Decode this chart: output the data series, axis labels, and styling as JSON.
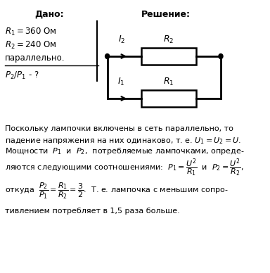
{
  "title_given": "Дано:",
  "title_solution": "Решение:",
  "given_lines": [
    "$R_1 = 360$ Ом",
    "$R_2 = 240$ Ом",
    "параллельно.",
    "$P_2/P_1$ - ?"
  ],
  "solution_text_lines": [
    "Поскольку лампочки включены в сеть параллельно, то",
    "падение напряжения на них одинаково, т. е. $U_1=U_2=U$.",
    "Мощности  $P_1$  и  $P_2$,  потребляемые лампочками, опреде-",
    "ляются следующими соотношениями:  $P_1=\\dfrac{U^2}{R_1}$  и  $P_2=\\dfrac{U^2}{R_2}$,",
    "откуда  $\\dfrac{P_2}{P_1}=\\dfrac{R_1}{R_2}=\\dfrac{3}{2}$.  Т. е. лампочка с меньшим сопро-",
    "тивлением потребляет в 1,5 раза больше."
  ],
  "bg_color": "#ffffff",
  "text_color": "#000000",
  "line_color": "#000000"
}
